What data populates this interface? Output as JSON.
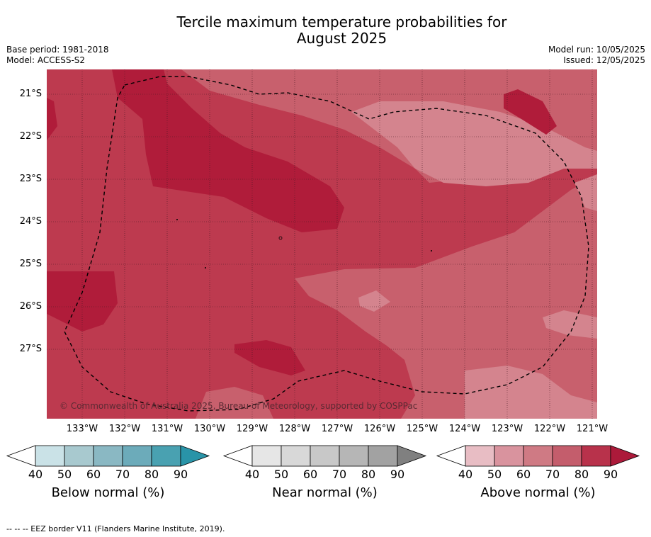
{
  "title_line1": "Tercile maximum temperature probabilities for",
  "title_line2": "August 2025",
  "base_period": "Base period: 1981-2018",
  "model": "Model: ACCESS-S2",
  "model_run": "Model run: 10/05/2025",
  "issued": "Issued: 12/05/2025",
  "copyright": "© Commonwealth of Australia 2025, Bureau of Meteorology, supported by COSPPac",
  "footnote": "--  --  -- EEZ border V11 (Flanders Marine Institute, 2019).",
  "map": {
    "latitudes": [
      "21°S",
      "22°S",
      "23°S",
      "24°S",
      "25°S",
      "26°S",
      "27°S"
    ],
    "longitudes": [
      "133°W",
      "132°W",
      "131°W",
      "130°W",
      "129°W",
      "128°W",
      "127°W",
      "126°W",
      "125°W",
      "124°W",
      "123°W",
      "122°W",
      "121°W"
    ],
    "colors": {
      "above_60": "#d4848e",
      "above_70": "#c8606d",
      "above_80": "#bd3a4f",
      "above_90": "#b01c3a"
    },
    "border_icon": "eez-dashed-border"
  },
  "colorbars": [
    {
      "label": "Below normal (%)",
      "ticks": [
        "40",
        "50",
        "60",
        "70",
        "80",
        "90"
      ],
      "colors": [
        "#cae2e7",
        "#a8c9cf",
        "#8ab8c3",
        "#6cabba",
        "#49a1b1",
        "#2994a8"
      ]
    },
    {
      "label": "Near normal (%)",
      "ticks": [
        "40",
        "50",
        "60",
        "70",
        "80",
        "90"
      ],
      "colors": [
        "#e6e6e6",
        "#d8d8d8",
        "#c8c8c8",
        "#b6b6b6",
        "#a2a2a2",
        "#808080"
      ]
    },
    {
      "label": "Above normal (%)",
      "ticks": [
        "40",
        "50",
        "60",
        "70",
        "80",
        "90"
      ],
      "colors": [
        "#e8bdc4",
        "#d9939e",
        "#cf7a84",
        "#c45d6c",
        "#b8324b",
        "#ac1a3a"
      ]
    }
  ]
}
